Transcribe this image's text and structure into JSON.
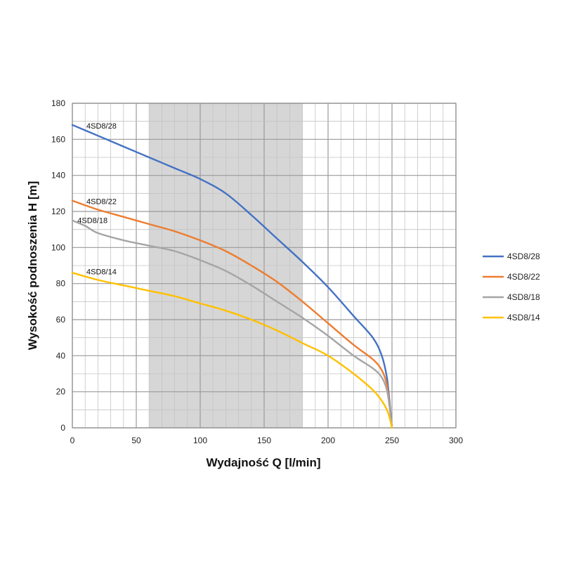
{
  "chart_data": {
    "type": "line",
    "title": "",
    "xlabel": "Wydajność Q [l/min]",
    "ylabel": "Wysokość podnoszenia H [m]",
    "xlim": [
      0,
      300
    ],
    "ylim": [
      0,
      180
    ],
    "xticks": [
      0,
      50,
      100,
      150,
      200,
      250,
      300
    ],
    "yticks": [
      0,
      20,
      40,
      60,
      80,
      100,
      120,
      140,
      160,
      180
    ],
    "x_minor_step": 10,
    "y_minor_step": 10,
    "grid": true,
    "shaded_range": [
      60,
      180
    ],
    "legend_position": "right",
    "series": [
      {
        "name": "4SD8/28",
        "color": "#4472C4",
        "x": [
          0,
          20,
          40,
          60,
          80,
          100,
          120,
          140,
          160,
          180,
          200,
          220,
          235,
          242,
          246,
          248,
          250
        ],
        "y": [
          168,
          162,
          156,
          150,
          144,
          138,
          130,
          118,
          105,
          92,
          78,
          62,
          50,
          40,
          28,
          15,
          0
        ]
      },
      {
        "name": "4SD8/22",
        "color": "#ED7D31",
        "x": [
          0,
          20,
          40,
          60,
          80,
          100,
          120,
          140,
          160,
          180,
          200,
          220,
          235,
          242,
          246,
          248,
          250
        ],
        "y": [
          126,
          121,
          117,
          113,
          109,
          104,
          98,
          90,
          81,
          70,
          58,
          46,
          38,
          32,
          24,
          13,
          0
        ]
      },
      {
        "name": "4SD8/18",
        "color": "#A5A5A5",
        "x": [
          0,
          10,
          20,
          40,
          60,
          80,
          100,
          120,
          140,
          160,
          180,
          200,
          220,
          235,
          242,
          246,
          248,
          250
        ],
        "y": [
          115,
          112,
          108,
          104,
          101,
          98,
          93,
          87,
          79,
          70,
          61,
          51,
          40,
          33,
          28,
          21,
          12,
          0
        ]
      },
      {
        "name": "4SD8/14",
        "color": "#FFC000",
        "x": [
          0,
          20,
          40,
          60,
          80,
          100,
          120,
          140,
          160,
          180,
          200,
          220,
          235,
          242,
          246,
          248,
          250
        ],
        "y": [
          86,
          82,
          79,
          76,
          73,
          69,
          65,
          60,
          54,
          47,
          40,
          30,
          21,
          15,
          10,
          6,
          0
        ]
      }
    ]
  }
}
